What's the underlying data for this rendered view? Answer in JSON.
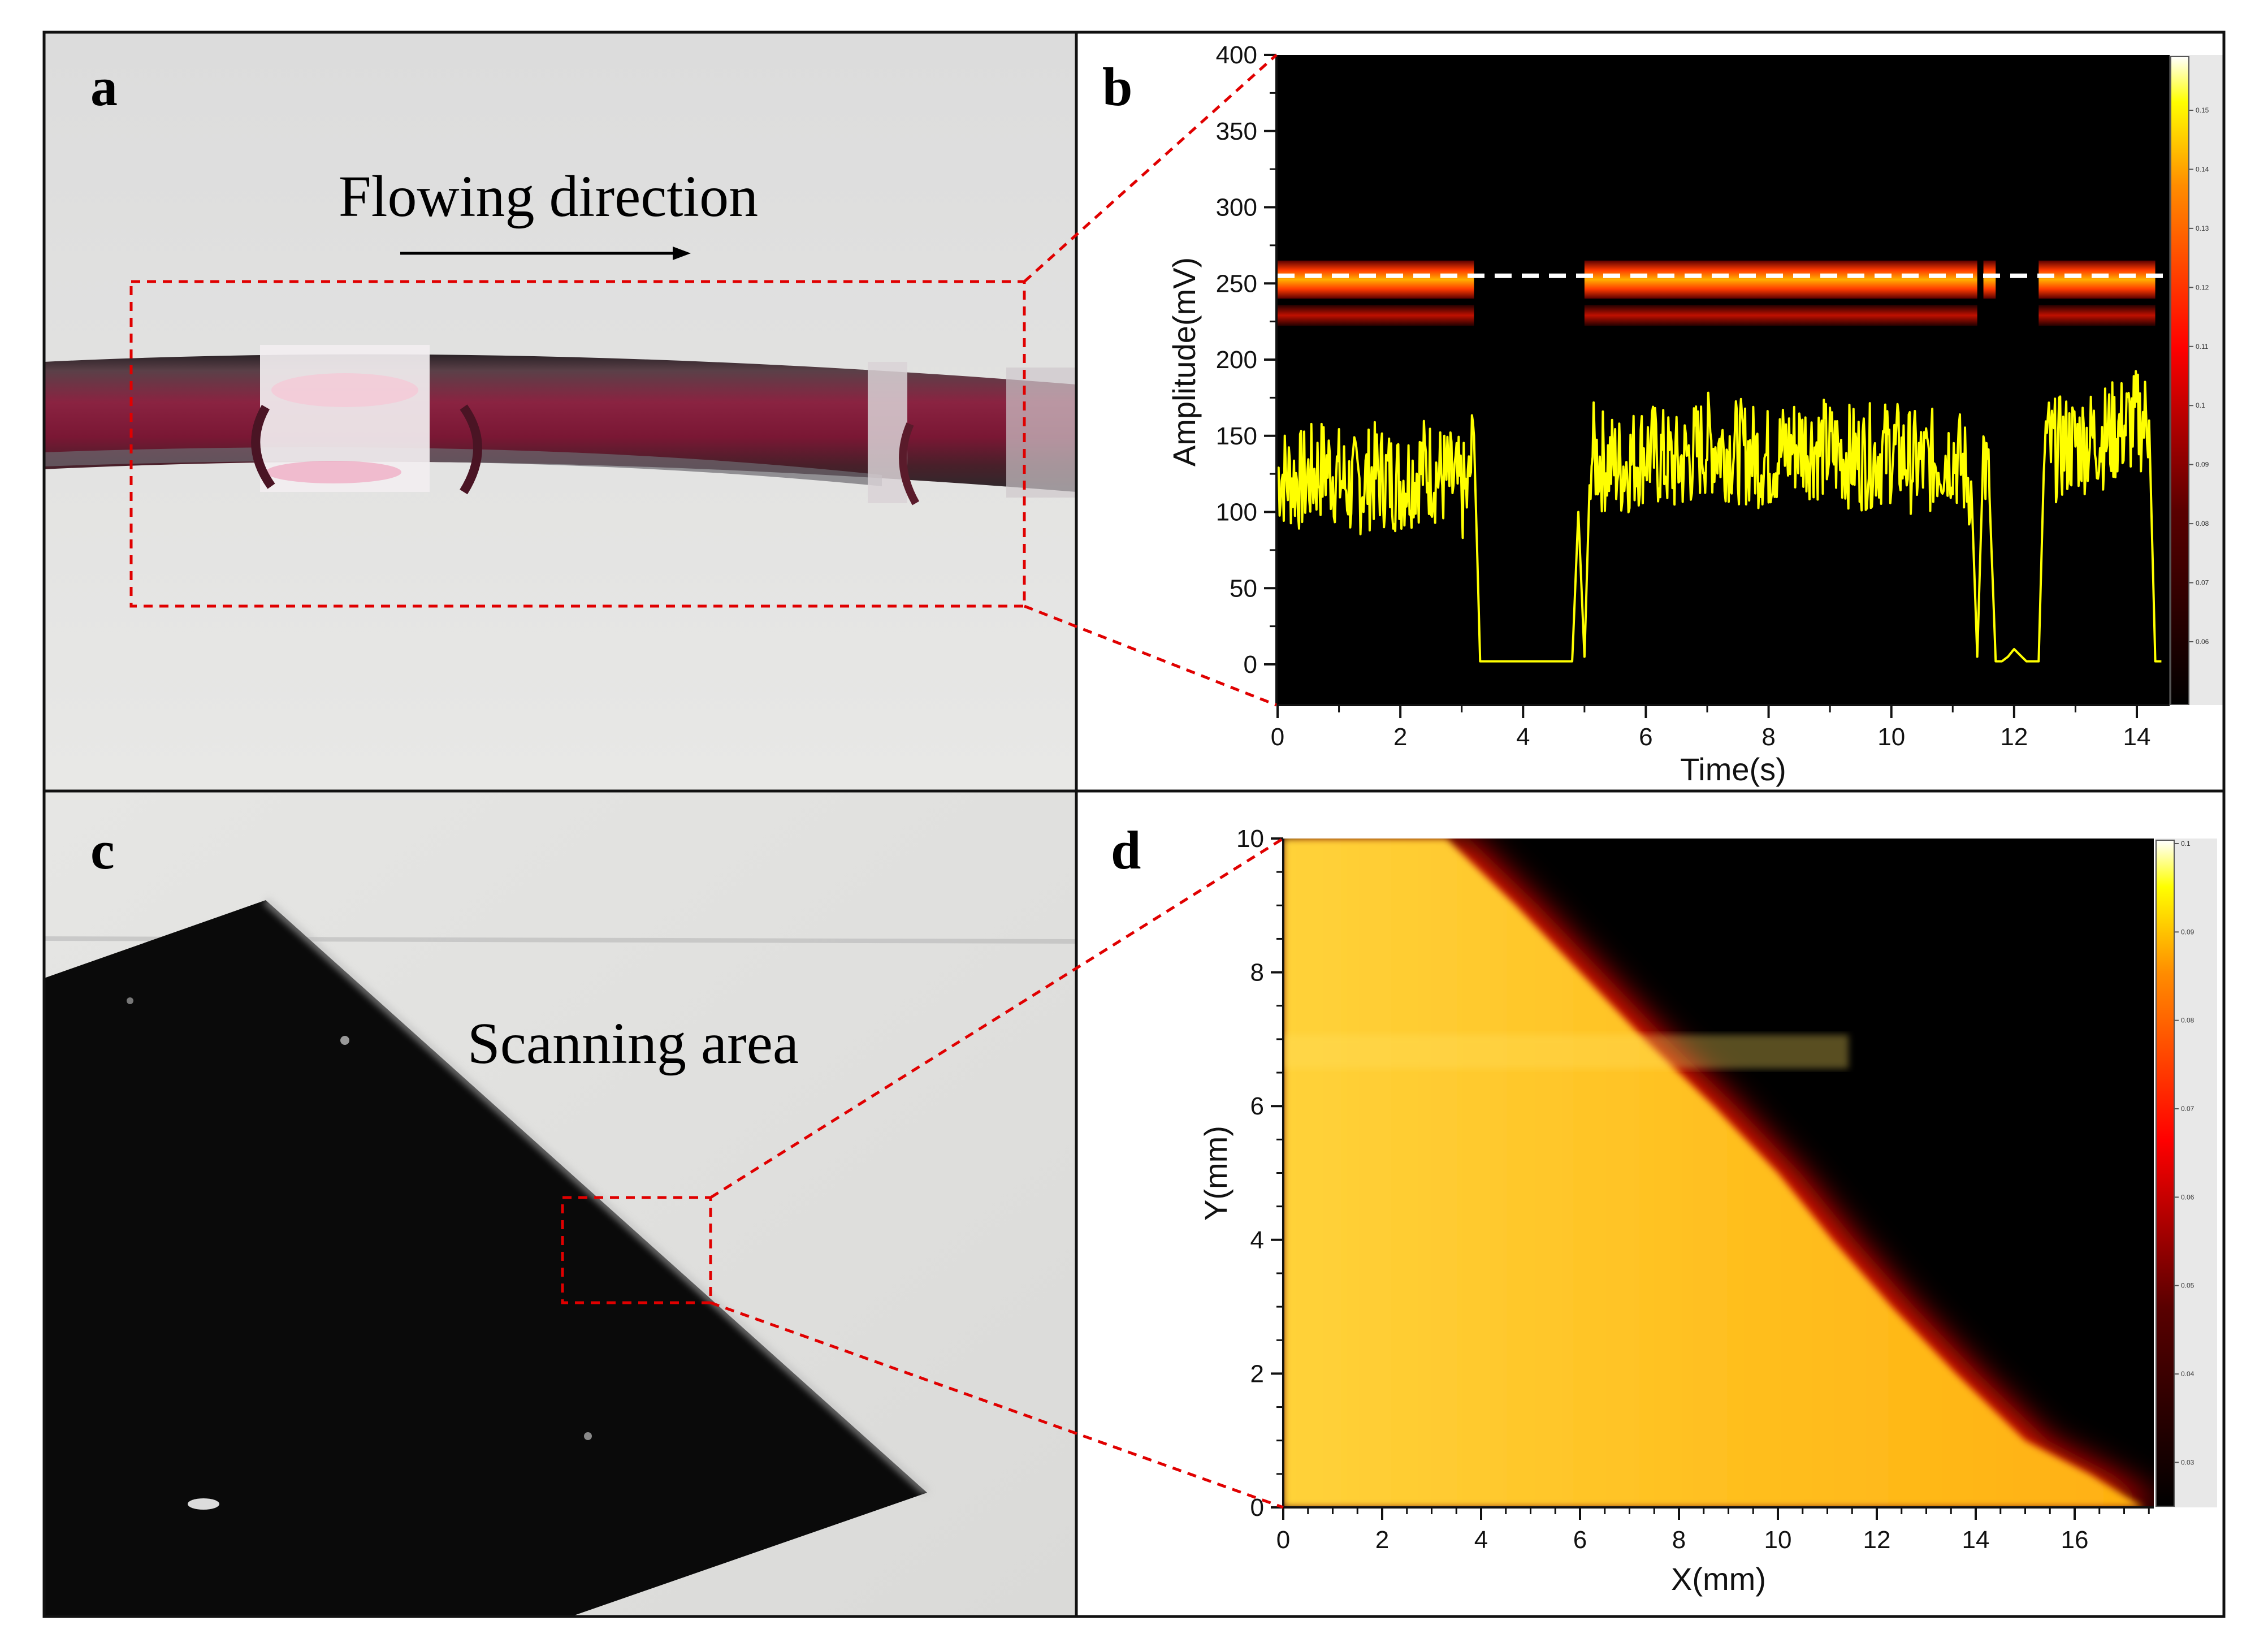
{
  "panels": {
    "a": {
      "label": "a",
      "annotation": "Flowing direction"
    },
    "b": {
      "label": "b"
    },
    "c": {
      "label": "c",
      "annotation": "Scanning area"
    },
    "d": {
      "label": "d"
    }
  },
  "colors": {
    "highlight_box": "#e00000",
    "signal_trace": "#ffff00",
    "heat_low": "#000000",
    "heat_mid": "#ff0000",
    "heat_high": "#ffff00",
    "tube_blood": "#7a1530",
    "black_sample": "#0a0a0a"
  },
  "chart_data": [
    {
      "panel": "b",
      "type": "line",
      "xlabel": "Time(s)",
      "ylabel": "Amplitude(mV)",
      "xlim": [
        0,
        14.5
      ],
      "ylim": [
        0,
        400
      ],
      "xticks": [
        "0",
        "2",
        "4",
        "6",
        "8",
        "10",
        "12",
        "14"
      ],
      "yticks": [
        "0",
        "50",
        "100",
        "150",
        "200",
        "250",
        "300",
        "350",
        "400"
      ],
      "reference_line_y": 255,
      "series": [
        {
          "x": [
            0,
            0.4,
            0.8,
            1.2,
            1.6,
            2.0,
            2.4,
            2.8,
            3.1,
            3.2,
            3.3,
            4.0,
            4.8,
            4.9,
            5.0,
            5.1,
            5.2,
            5.6,
            6.0,
            6.5,
            7.0,
            7.5,
            8.0,
            8.5,
            9.0,
            9.5,
            10.0,
            10.5,
            11.0,
            11.3,
            11.4,
            11.5,
            11.6,
            11.7,
            11.8,
            11.9,
            12.0,
            12.2,
            12.4,
            12.5,
            12.6,
            13.0,
            13.5,
            14.0,
            14.2,
            14.3,
            14.4
          ],
          "y": [
            125,
            120,
            130,
            115,
            125,
            120,
            130,
            120,
            110,
            150,
            2,
            2,
            2,
            100,
            5,
            140,
            135,
            130,
            140,
            130,
            145,
            140,
            135,
            145,
            140,
            135,
            140,
            130,
            140,
            120,
            5,
            140,
            110,
            2,
            2,
            5,
            10,
            2,
            2,
            150,
            140,
            145,
            150,
            160,
            160,
            2,
            2
          ]
        }
      ],
      "heatmap_bands": [
        {
          "y_from": 240,
          "y_to": 265,
          "x_ranges": [
            [
              0,
              3.2
            ],
            [
              5.0,
              11.4
            ],
            [
              11.5,
              11.7
            ],
            [
              12.4,
              14.3
            ]
          ]
        },
        {
          "y_from": 222,
          "y_to": 236,
          "x_ranges": [
            [
              0,
              3.2
            ],
            [
              5.0,
              11.4
            ],
            [
              12.4,
              14.3
            ]
          ]
        }
      ],
      "colorbar_ticks": [
        "0.15",
        "0.14",
        "0.13",
        "0.12",
        "0.11",
        "0.1",
        "0.09",
        "0.08",
        "0.07",
        "0.06"
      ]
    },
    {
      "panel": "d",
      "type": "heatmap",
      "xlabel": "X(mm)",
      "ylabel": "Y(mm)",
      "xlim": [
        0,
        17.6
      ],
      "ylim": [
        0,
        10
      ],
      "xticks": [
        "0",
        "2",
        "4",
        "6",
        "8",
        "10",
        "12",
        "14",
        "16"
      ],
      "yticks": [
        "0",
        "2",
        "4",
        "6",
        "8",
        "10"
      ],
      "edge_boundary": {
        "y": [
          10,
          9,
          8,
          7,
          6,
          5,
          4,
          3,
          2,
          1,
          0.5,
          0
        ],
        "x": [
          3.3,
          4.7,
          6.0,
          7.3,
          8.7,
          10.0,
          11.1,
          12.3,
          13.6,
          15.0,
          16.3,
          17.4
        ]
      },
      "colorbar_ticks": [
        "0.1",
        "0.09",
        "0.08",
        "0.07",
        "0.06",
        "0.05",
        "0.04",
        "0.03"
      ]
    }
  ]
}
